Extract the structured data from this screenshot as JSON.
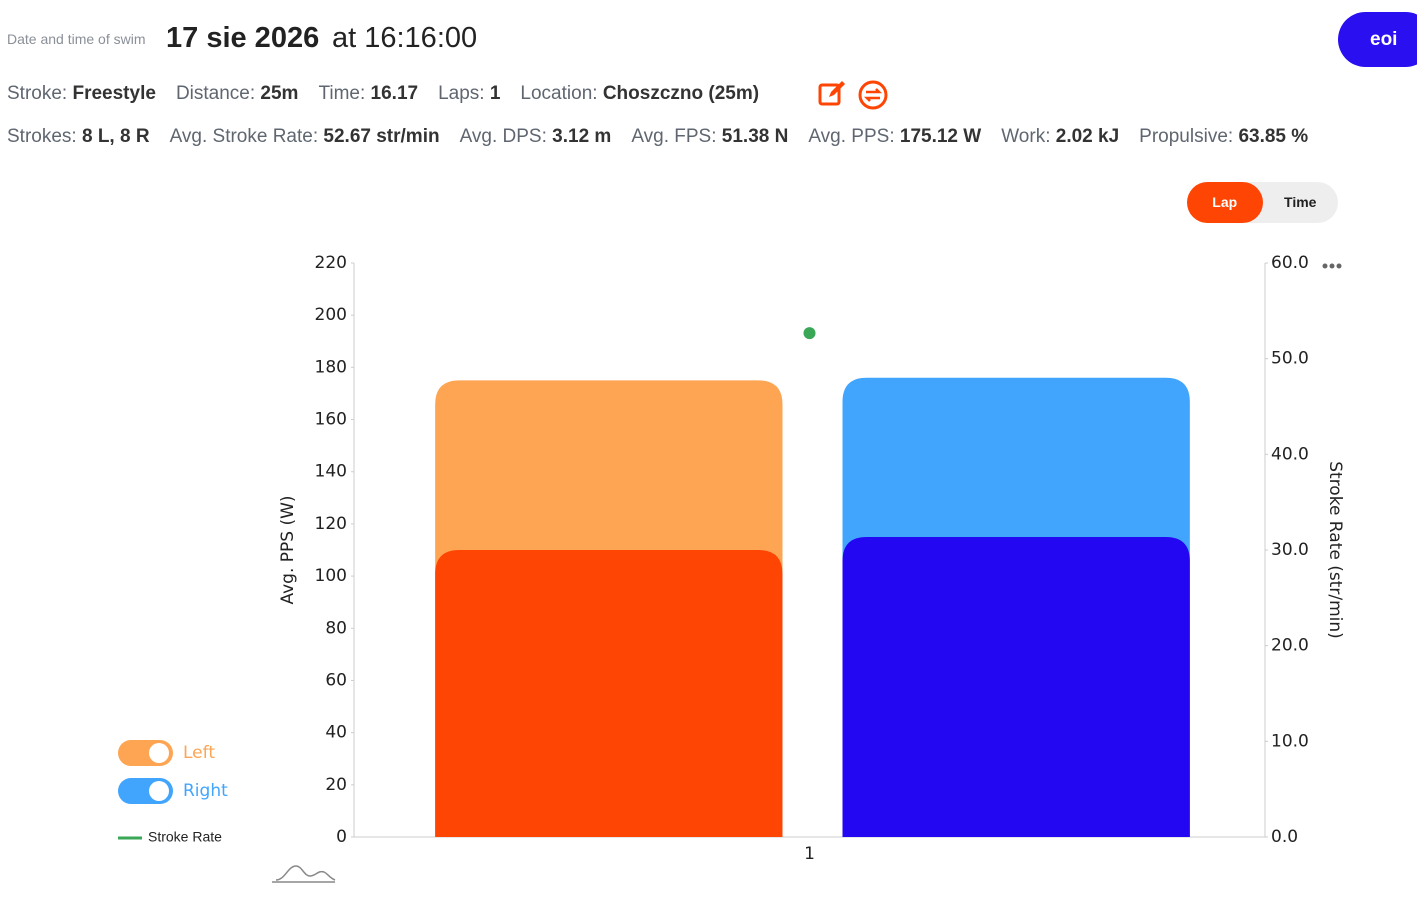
{
  "header": {
    "label": "Date and time of swim",
    "date": "17 sie 2026",
    "time": "at 16:16:00"
  },
  "user_button": "eoi",
  "stats": [
    [
      {
        "label": "Stroke:",
        "value": "Freestyle"
      },
      {
        "label": "Distance:",
        "value": "25m"
      },
      {
        "label": "Time:",
        "value": "16.17"
      },
      {
        "label": "Laps:",
        "value": "1"
      },
      {
        "label": "Location:",
        "value": "Choszczno (25m)"
      }
    ],
    [
      {
        "label": "Strokes:",
        "value": "8 L, 8 R"
      },
      {
        "label": "Avg. Stroke Rate:",
        "value": "52.67 str/min"
      },
      {
        "label": "Avg. DPS:",
        "value": "3.12 m"
      },
      {
        "label": "Avg. FPS:",
        "value": "51.38 N"
      },
      {
        "label": "Avg. PPS:",
        "value": "175.12 W"
      },
      {
        "label": "Work:",
        "value": "2.02 kJ"
      },
      {
        "label": "Propulsive:",
        "value": "63.85 %"
      }
    ]
  ],
  "view_toggle": {
    "options": [
      "Lap",
      "Time"
    ],
    "active": 0
  },
  "chart_data": {
    "type": "bar",
    "categories": [
      "1"
    ],
    "y_label": "Avg. PPS (W)",
    "y2_label": "Stroke Rate (str/min)",
    "series": [
      {
        "name": "Left",
        "color": "#fda553",
        "values": [
          175
        ],
        "inner_values": [
          110
        ],
        "inner_color": "#ff4503"
      },
      {
        "name": "Right",
        "color": "#42a5fd",
        "values": [
          176
        ],
        "inner_values": [
          115
        ],
        "inner_color": "#2307f2"
      },
      {
        "name": "Stroke Rate",
        "type": "scatter",
        "axis": "y2",
        "color": "#3aa757",
        "values": [
          52.67
        ]
      }
    ],
    "ylim": [
      0,
      220
    ],
    "yticks": [
      0,
      20,
      40,
      60,
      80,
      100,
      120,
      140,
      160,
      180,
      200,
      220
    ],
    "y2lim": [
      0,
      60
    ],
    "y2ticks": [
      {
        "value": 0,
        "label": "0.0"
      },
      {
        "value": 10,
        "label": "10.0"
      },
      {
        "value": 20,
        "label": "20.0"
      },
      {
        "value": 30,
        "label": "30.0"
      },
      {
        "value": 40,
        "label": "40.0"
      },
      {
        "value": 50,
        "label": "50.0"
      },
      {
        "value": 60,
        "label": "60.0"
      }
    ],
    "grid": false
  }
}
